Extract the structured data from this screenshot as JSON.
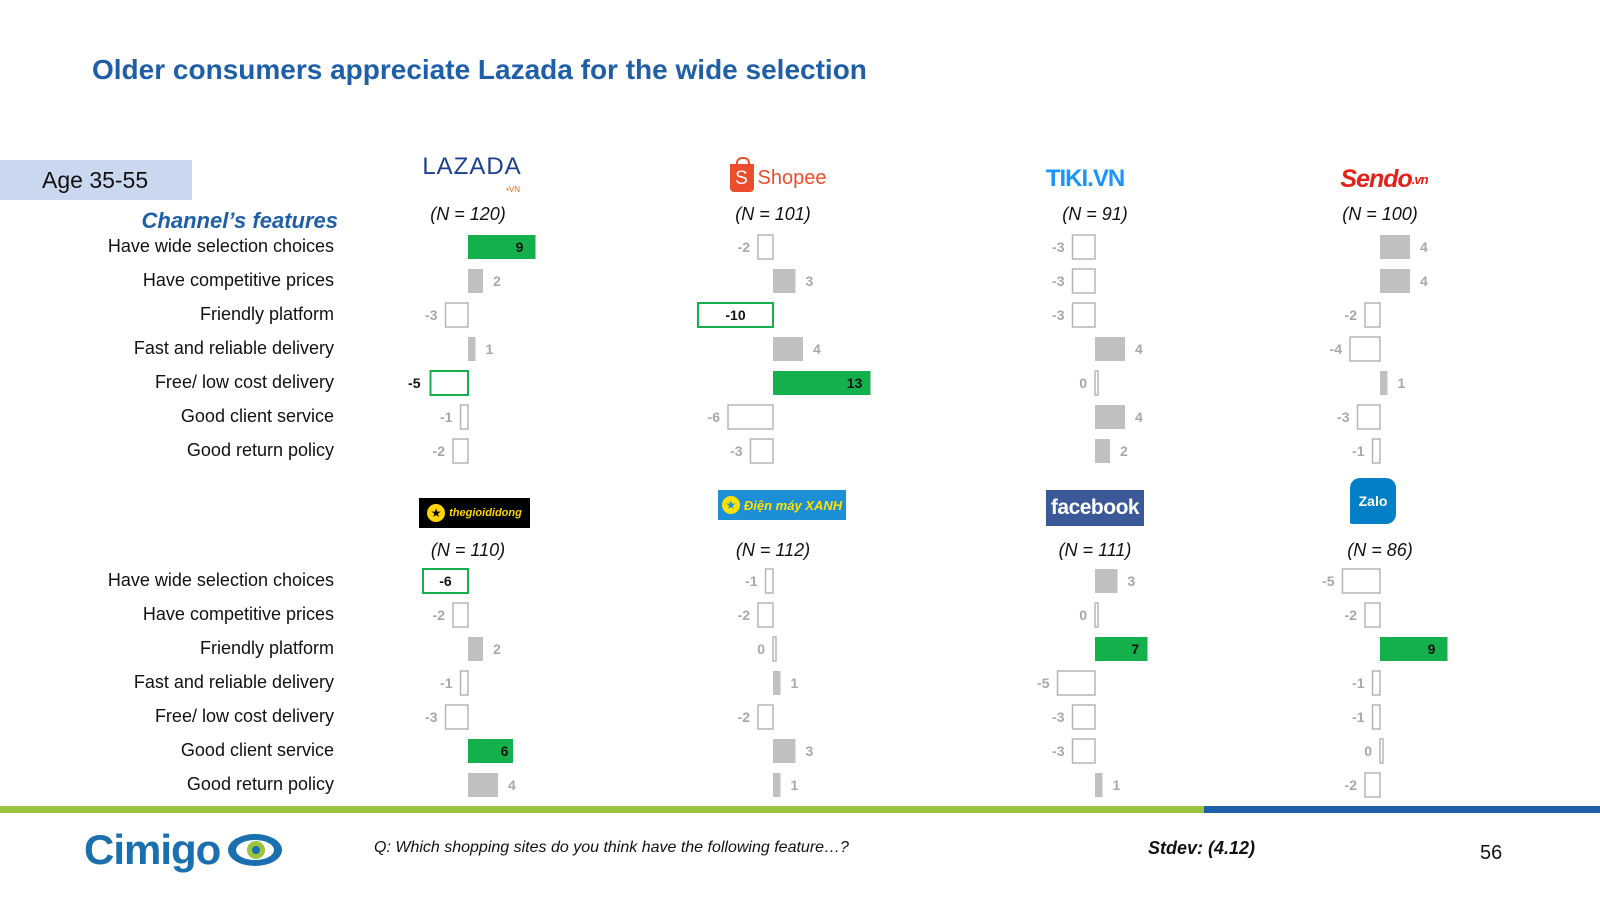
{
  "title": "Older consumers appreciate Lazada for the wide selection",
  "age_group": "Age 35-55",
  "features_heading": "Channel’s features",
  "question": "Q: Which shopping sites do you think have the following feature…?",
  "stdev": "Stdev: (4.12)",
  "page_number": "56",
  "footer_logo": "Cimigo",
  "colors": {
    "title": "#1f5fa8",
    "positive_highlight": "#13b04b",
    "neutral_bar": "#c0c0c0",
    "footer_green": "#9bc53d",
    "footer_blue": "#1f5fa8"
  },
  "logos": {
    "lazada": {
      "text": "LAZADA",
      "sub": "•VN"
    },
    "shopee": {
      "bag": "S",
      "text": "Shopee"
    },
    "tiki": {
      "text": "TIKI.VN"
    },
    "sendo": {
      "text": "Sendo",
      "sub": ".vn"
    },
    "tgdd": {
      "text": "thegioididong"
    },
    "dmx": {
      "text": "Điện máy XANH"
    },
    "facebook": {
      "text": "facebook"
    },
    "zalo": {
      "text": "Zalo"
    }
  },
  "chart_data": {
    "type": "bar",
    "orientation": "horizontal",
    "categories": [
      "Have wide selection choices",
      "Have competitive prices",
      "Friendly platform",
      "Fast and reliable delivery",
      "Free/ low cost delivery",
      "Good client service",
      "Good return policy"
    ],
    "groups": [
      {
        "brand": "Lazada",
        "n": "(N = 120)",
        "values": [
          9,
          2,
          -3,
          1,
          -5,
          -1,
          -2
        ],
        "highlight": [
          "pos",
          "",
          "",
          "",
          "neg",
          "",
          ""
        ]
      },
      {
        "brand": "Shopee",
        "n": "(N = 101)",
        "values": [
          -2,
          3,
          -10,
          4,
          13,
          -6,
          -3
        ],
        "highlight": [
          "",
          "",
          "neg",
          "",
          "pos",
          "",
          ""
        ]
      },
      {
        "brand": "Tiki.vn",
        "n": "(N = 91)",
        "values": [
          -3,
          -3,
          -3,
          4,
          0,
          4,
          2
        ],
        "highlight": [
          "",
          "",
          "",
          "",
          "",
          "",
          ""
        ]
      },
      {
        "brand": "Sendo",
        "n": "(N = 100)",
        "values": [
          4,
          4,
          -2,
          -4,
          1,
          -3,
          -1
        ],
        "highlight": [
          "",
          "",
          "",
          "",
          "",
          "",
          ""
        ]
      },
      {
        "brand": "thegioididong",
        "n": "(N = 110)",
        "values": [
          -6,
          -2,
          2,
          -1,
          -3,
          6,
          4
        ],
        "highlight": [
          "neg",
          "",
          "",
          "",
          "",
          "pos",
          ""
        ]
      },
      {
        "brand": "Dien may Xanh",
        "n": "(N = 112)",
        "values": [
          -1,
          -2,
          0,
          1,
          -2,
          3,
          1
        ],
        "highlight": [
          "",
          "",
          "",
          "",
          "",
          "",
          ""
        ]
      },
      {
        "brand": "Facebook",
        "n": "(N = 111)",
        "values": [
          3,
          0,
          7,
          -5,
          -3,
          -3,
          1
        ],
        "highlight": [
          "",
          "",
          "pos",
          "",
          "",
          "",
          ""
        ]
      },
      {
        "brand": "Zalo",
        "n": "(N = 86)",
        "values": [
          -5,
          -2,
          9,
          -1,
          -1,
          0,
          -2
        ],
        "highlight": [
          "",
          "",
          "pos",
          "",
          "",
          "",
          ""
        ]
      }
    ]
  }
}
